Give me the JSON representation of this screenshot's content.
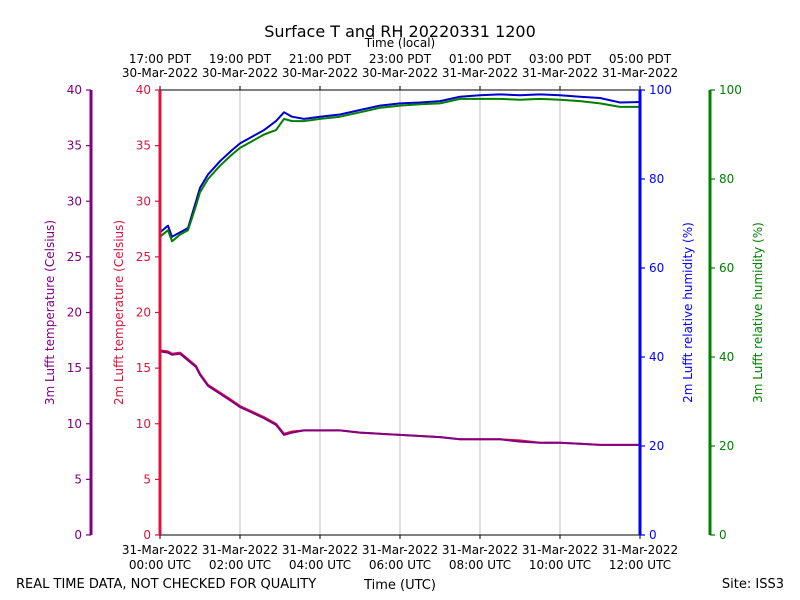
{
  "chart_data": {
    "type": "line",
    "title": "Surface T and RH 20220331 1200",
    "top_axis_label": "Time (local)",
    "top_ticks": [
      {
        "time": "17:00 PDT",
        "date": "30-Mar-2022"
      },
      {
        "time": "19:00 PDT",
        "date": "30-Mar-2022"
      },
      {
        "time": "21:00 PDT",
        "date": "30-Mar-2022"
      },
      {
        "time": "23:00 PDT",
        "date": "30-Mar-2022"
      },
      {
        "time": "01:00 PDT",
        "date": "31-Mar-2022"
      },
      {
        "time": "03:00 PDT",
        "date": "31-Mar-2022"
      },
      {
        "time": "05:00 PDT",
        "date": "31-Mar-2022"
      }
    ],
    "bottom_ticks": [
      {
        "date": "31-Mar-2022",
        "time": "00:00 UTC"
      },
      {
        "date": "31-Mar-2022",
        "time": "02:00 UTC"
      },
      {
        "date": "31-Mar-2022",
        "time": "04:00 UTC"
      },
      {
        "date": "31-Mar-2022",
        "time": "06:00 UTC"
      },
      {
        "date": "31-Mar-2022",
        "time": "08:00 UTC"
      },
      {
        "date": "31-Mar-2022",
        "time": "10:00 UTC"
      },
      {
        "date": "31-Mar-2022",
        "time": "12:00 UTC"
      }
    ],
    "xlabel": "Time (UTC)",
    "xlim": [
      0,
      12
    ],
    "axes": {
      "t3m": {
        "label": "3m Lufft temperature (Celsius)",
        "color": "#800080",
        "ylim": [
          0,
          40
        ],
        "ticks": [
          0,
          5,
          10,
          15,
          20,
          25,
          30,
          35,
          40
        ]
      },
      "t2m": {
        "label": "2m Lufft temperature (Celsius)",
        "color": "#dc143c",
        "ylim": [
          0,
          40
        ],
        "ticks": [
          0,
          5,
          10,
          15,
          20,
          25,
          30,
          35,
          40
        ]
      },
      "rh2m": {
        "label": "2m Lufft relative humidity (%)",
        "color": "#0000ff",
        "ylim": [
          0,
          100
        ],
        "ticks": [
          0,
          20,
          40,
          60,
          80,
          100
        ]
      },
      "rh3m": {
        "label": "3m Lufft relative humidity (%)",
        "color": "#008000",
        "ylim": [
          0,
          100
        ],
        "ticks": [
          0,
          20,
          40,
          60,
          80,
          100
        ]
      }
    },
    "series": [
      {
        "name": "2m RH",
        "axis": "rh2m",
        "color": "#0000cc",
        "x": [
          0,
          0.2,
          0.3,
          0.5,
          0.7,
          0.9,
          1.0,
          1.2,
          1.5,
          1.8,
          2.0,
          2.3,
          2.6,
          2.9,
          3.1,
          3.3,
          3.6,
          4.0,
          4.5,
          5.0,
          5.5,
          6.0,
          6.5,
          7.0,
          7.5,
          8.0,
          8.5,
          9.0,
          9.5,
          10.0,
          10.5,
          11.0,
          11.5,
          12.0
        ],
        "values": [
          68,
          69.5,
          67,
          68,
          69,
          75,
          78,
          81,
          84,
          86.5,
          88,
          89.5,
          91,
          93,
          95,
          94,
          93.5,
          94,
          94.5,
          95.5,
          96.5,
          97,
          97.2,
          97.5,
          98.5,
          98.8,
          99,
          98.8,
          99,
          98.8,
          98.5,
          98.2,
          97.2,
          97.3
        ]
      },
      {
        "name": "3m RH",
        "axis": "rh3m",
        "color": "#008000",
        "x": [
          0,
          0.2,
          0.3,
          0.5,
          0.7,
          0.9,
          1.0,
          1.2,
          1.5,
          1.8,
          2.0,
          2.3,
          2.6,
          2.9,
          3.1,
          3.3,
          3.6,
          4.0,
          4.5,
          5.0,
          5.5,
          6.0,
          6.5,
          7.0,
          7.5,
          8.0,
          8.5,
          9.0,
          9.5,
          10.0,
          10.5,
          11.0,
          11.5,
          12.0
        ],
        "values": [
          67,
          68.5,
          66,
          67.5,
          68.5,
          74,
          77,
          80,
          83,
          85.5,
          87,
          88.5,
          90,
          91,
          93.5,
          93,
          93,
          93.5,
          94,
          95,
          96,
          96.5,
          96.8,
          97,
          98,
          98,
          98,
          97.8,
          98,
          97.8,
          97.5,
          97,
          96.2,
          96.2
        ]
      },
      {
        "name": "2m Temperature",
        "axis": "t2m",
        "color": "#dc143c",
        "x": [
          0,
          0.2,
          0.3,
          0.5,
          0.7,
          0.9,
          1.0,
          1.2,
          1.5,
          1.8,
          2.0,
          2.3,
          2.6,
          2.9,
          3.1,
          3.3,
          3.6,
          4.0,
          4.5,
          5.0,
          5.5,
          6.0,
          6.5,
          7.0,
          7.5,
          8.0,
          8.5,
          9.0,
          9.5,
          10.0,
          10.5,
          11.0,
          11.5,
          12.0
        ],
        "values": [
          16.6,
          16.5,
          16.3,
          16.4,
          15.8,
          15.2,
          14.5,
          13.5,
          12.8,
          12.1,
          11.6,
          11.1,
          10.6,
          10.0,
          9.1,
          9.3,
          9.4,
          9.4,
          9.4,
          9.2,
          9.1,
          9.0,
          8.9,
          8.8,
          8.6,
          8.6,
          8.6,
          8.5,
          8.3,
          8.3,
          8.2,
          8.1,
          8.1,
          8.1
        ]
      },
      {
        "name": "3m Temperature",
        "axis": "t3m",
        "color": "#800080",
        "x": [
          0,
          0.2,
          0.3,
          0.5,
          0.7,
          0.9,
          1.0,
          1.2,
          1.5,
          1.8,
          2.0,
          2.3,
          2.6,
          2.9,
          3.1,
          3.3,
          3.6,
          4.0,
          4.5,
          5.0,
          5.5,
          6.0,
          6.5,
          7.0,
          7.5,
          8.0,
          8.5,
          9.0,
          9.5,
          10.0,
          10.5,
          11.0,
          11.5,
          12.0
        ],
        "values": [
          16.5,
          16.4,
          16.2,
          16.3,
          15.7,
          15.1,
          14.4,
          13.4,
          12.7,
          12.0,
          11.5,
          11.0,
          10.5,
          9.9,
          9.0,
          9.2,
          9.4,
          9.4,
          9.4,
          9.2,
          9.1,
          9.0,
          8.9,
          8.8,
          8.6,
          8.6,
          8.6,
          8.4,
          8.3,
          8.3,
          8.2,
          8.1,
          8.1,
          8.1
        ]
      }
    ],
    "grid": "vertical"
  },
  "footer": {
    "quality_note": "REAL TIME DATA, NOT CHECKED FOR QUALITY",
    "site": "Site: ISS3"
  }
}
